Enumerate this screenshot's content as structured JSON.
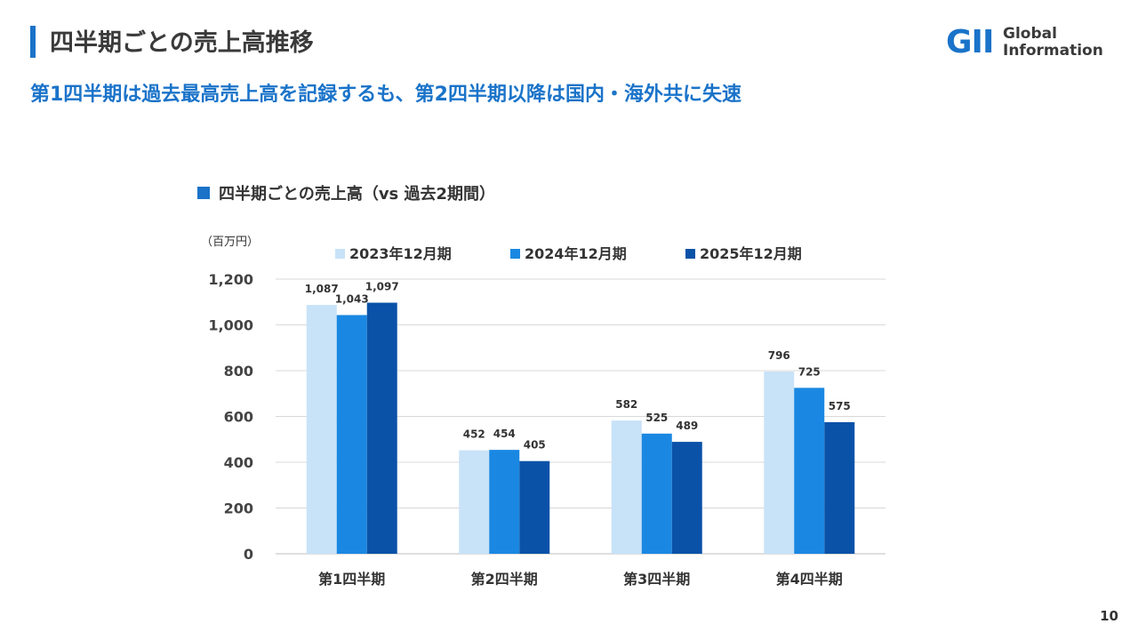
{
  "header": {
    "title": "四半期ごとの売上高推移",
    "subtitle": "第1四半期は過去最高売上高を記録するも、第2四半期以降は国内・海外共に失速"
  },
  "logo": {
    "mark": "GII",
    "line1": "Global",
    "line2": "Information"
  },
  "chart_heading": "四半期ごとの売上高（vs 過去2期間）",
  "unit_label": "（百万円）",
  "page_number": "10",
  "colors": {
    "accent": "#1a73c9",
    "series": [
      "#c8e2f8",
      "#1a88e2",
      "#0a52a8"
    ],
    "grid": "#d9d9d9"
  },
  "chart_data": {
    "type": "bar",
    "categories": [
      "第1四半期",
      "第2四半期",
      "第3四半期",
      "第4四半期"
    ],
    "series": [
      {
        "name": "2023年12月期",
        "values": [
          1087,
          452,
          582,
          796
        ],
        "labels": [
          "1,087",
          "452",
          "582",
          "796"
        ]
      },
      {
        "name": "2024年12月期",
        "values": [
          1043,
          454,
          525,
          725
        ],
        "labels": [
          "1,043",
          "454",
          "525",
          "725"
        ]
      },
      {
        "name": "2025年12月期",
        "values": [
          1097,
          405,
          489,
          575
        ],
        "labels": [
          "1,097",
          "405",
          "489",
          "575"
        ]
      }
    ],
    "yticks": [
      0,
      200,
      400,
      600,
      800,
      1000,
      1200
    ],
    "ytick_labels": [
      "0",
      "200",
      "400",
      "600",
      "800",
      "1,000",
      "1,200"
    ],
    "ylim": [
      0,
      1200
    ],
    "grid": true,
    "legend_position": "top"
  }
}
